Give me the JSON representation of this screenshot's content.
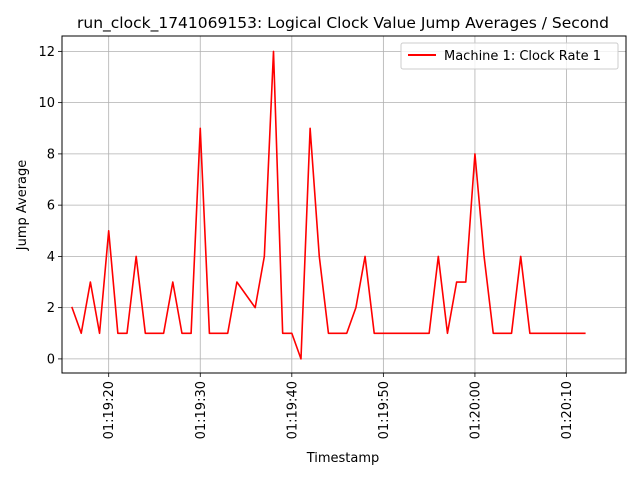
{
  "chart_data": {
    "type": "line",
    "title": "run_clock_1741069153: Logical Clock Value Jump Averages / Second",
    "xlabel": "Timestamp",
    "ylabel": "Jump Average",
    "x_type": "time",
    "xlim": [
      "01:19:14.9",
      "01:20:16.5"
    ],
    "ylim": [
      -0.55,
      12.6
    ],
    "x_ticks": [
      "01:19:20",
      "01:19:30",
      "01:19:40",
      "01:19:50",
      "01:20:00",
      "01:20:10"
    ],
    "y_ticks": [
      0,
      2,
      4,
      6,
      8,
      10,
      12
    ],
    "grid": true,
    "legend_position": "top-right",
    "series": [
      {
        "name": "Machine 1: Clock Rate 1",
        "color": "#ff0000",
        "x": [
          "01:19:16",
          "01:19:17",
          "01:19:18",
          "01:19:19",
          "01:19:20",
          "01:19:21",
          "01:19:22",
          "01:19:23",
          "01:19:24",
          "01:19:25",
          "01:19:26",
          "01:19:27",
          "01:19:28",
          "01:19:29",
          "01:19:30",
          "01:19:31",
          "01:19:32",
          "01:19:33",
          "01:19:34",
          "01:19:36",
          "01:19:37",
          "01:19:38",
          "01:19:39",
          "01:19:40",
          "01:19:41",
          "01:19:42",
          "01:19:43",
          "01:19:44",
          "01:19:45",
          "01:19:46",
          "01:19:47",
          "01:19:48",
          "01:19:49",
          "01:19:50",
          "01:19:51",
          "01:19:52",
          "01:19:53",
          "01:19:54",
          "01:19:55",
          "01:19:56",
          "01:19:57",
          "01:19:58",
          "01:19:59",
          "01:20:00",
          "01:20:01",
          "01:20:02",
          "01:20:03",
          "01:20:04",
          "01:20:05",
          "01:20:06",
          "01:20:07",
          "01:20:08",
          "01:20:09",
          "01:20:10",
          "01:20:11",
          "01:20:12"
        ],
        "y": [
          2,
          1,
          3,
          1,
          5,
          1,
          1,
          4,
          1,
          1,
          1,
          3,
          1,
          1,
          9,
          1,
          1,
          1,
          3,
          2,
          4,
          12,
          1,
          1,
          0,
          9,
          4,
          1,
          1,
          1,
          2,
          4,
          1,
          1,
          1,
          1,
          1,
          1,
          1,
          4,
          1,
          3,
          3,
          8,
          4,
          1,
          1,
          1,
          4,
          1,
          1,
          1,
          1,
          1,
          1,
          1
        ]
      }
    ]
  }
}
